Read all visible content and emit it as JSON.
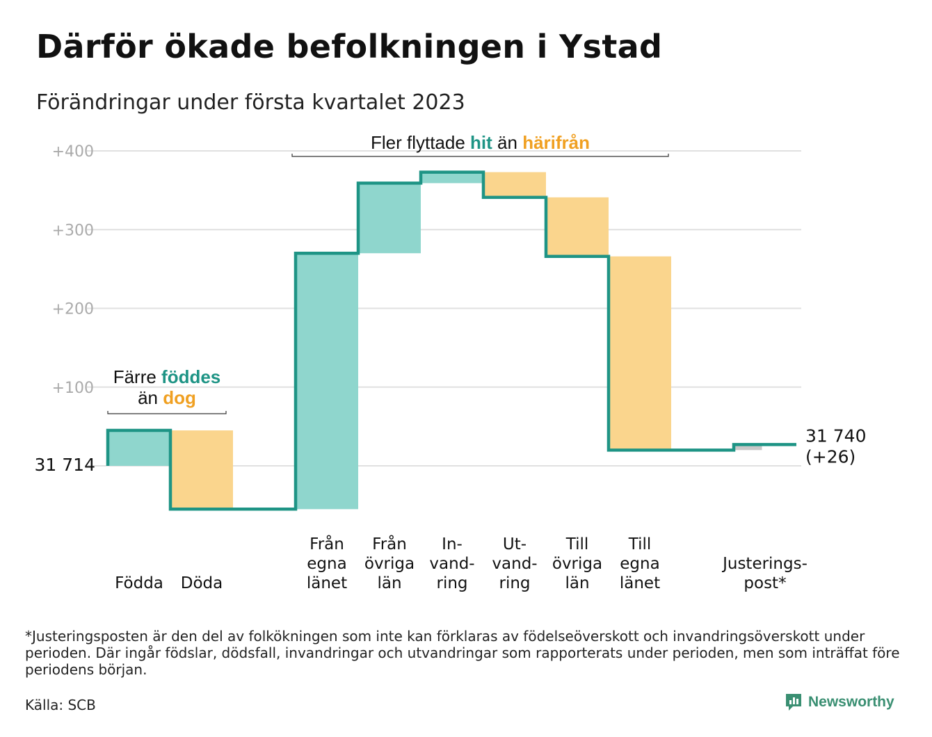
{
  "title": "Därför ökade befolkningen i Ystad",
  "subtitle": "Förändringar under första kvartalet 2023",
  "footnote": "*Justeringsposten är den del av folkökningen som inte kan förklaras av födelseöverskott och invandringsöverskott under perioden. Där ingår födslar, dödsfall, invandringar och utvandringar som rapporterats under perioden, men som inträffat före periodens början.",
  "source": "Källa: SCB",
  "brand": "Newsworthy",
  "colors": {
    "line": "#1e9485",
    "increase": "#8fd6cd",
    "decrease": "#fad58d",
    "adjustment": "#c8c8c8",
    "grid": "#e0e0e0",
    "tick_text": "#aaaaaa",
    "hit": "#1e9485",
    "harifran": "#f0a022"
  },
  "chart_data": {
    "type": "waterfall",
    "start_value": 31714,
    "start_label": "31 714",
    "end_label": [
      "31 740",
      "(+26)"
    ],
    "ylim": [
      -55,
      400
    ],
    "yticks": [
      100,
      200,
      300,
      400
    ],
    "ytick_labels": [
      "+100",
      "+200",
      "+300",
      "+400"
    ],
    "grid": true,
    "steps": [
      {
        "label": [
          "",
          "",
          "Födda"
        ],
        "delta": 45,
        "kind": "increase"
      },
      {
        "label": [
          "",
          "",
          "Döda"
        ],
        "delta": -100,
        "kind": "decrease"
      },
      {
        "label": [],
        "delta": 0,
        "kind": "none"
      },
      {
        "label": [
          "Från",
          "egna",
          "länet"
        ],
        "delta": 325,
        "kind": "increase"
      },
      {
        "label": [
          "Från",
          "övriga",
          "län"
        ],
        "delta": 89,
        "kind": "increase"
      },
      {
        "label": [
          "In-",
          "vand-",
          "ring"
        ],
        "delta": 14,
        "kind": "increase"
      },
      {
        "label": [
          "Ut-",
          "vand-",
          "ring"
        ],
        "delta": -32,
        "kind": "decrease"
      },
      {
        "label": [
          "Till",
          "övriga",
          "län"
        ],
        "delta": -75,
        "kind": "decrease"
      },
      {
        "label": [
          "Till",
          "egna",
          "länet"
        ],
        "delta": -246,
        "kind": "decrease"
      },
      {
        "label": [],
        "delta": 0,
        "kind": "none"
      },
      {
        "label": [
          "",
          "Justerings-",
          "post*"
        ],
        "delta": 7,
        "kind": "adjustment"
      }
    ],
    "annotations": [
      {
        "group": "births",
        "lines": [
          [
            {
              "text": "Färre ",
              "style": "plain"
            },
            {
              "text": "föddes",
              "style": "hit"
            }
          ],
          [
            {
              "text": "än ",
              "style": "plain"
            },
            {
              "text": "dog",
              "style": "harifran"
            }
          ]
        ]
      },
      {
        "group": "migration",
        "lines": [
          [
            {
              "text": "Fler flyttade ",
              "style": "plain"
            },
            {
              "text": "hit",
              "style": "hit"
            },
            {
              "text": " än ",
              "style": "plain"
            },
            {
              "text": "härifrån",
              "style": "harifran"
            }
          ]
        ]
      }
    ]
  }
}
